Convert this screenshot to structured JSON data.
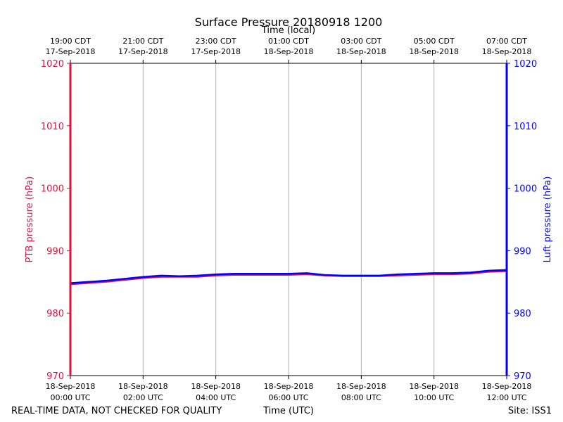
{
  "chart_data": {
    "type": "line",
    "title": "Surface Pressure 20180918 1200",
    "top_axis_label": "Time (local)",
    "xlabel": "Time (UTC)",
    "footer_left": "REAL-TIME DATA, NOT CHECKED FOR QUALITY",
    "footer_right": "Site: ISS1",
    "ylabel_left": "PTB pressure (hPa)",
    "ylabel_right": "Luft pressure (hPa)",
    "xlim_hours_utc": [
      0,
      12
    ],
    "ylim": [
      970,
      1020
    ],
    "yticks": [
      970,
      980,
      990,
      1000,
      1010,
      1020
    ],
    "xticks_bottom": [
      {
        "h": 0,
        "line1": "18-Sep-2018",
        "line2": "00:00 UTC"
      },
      {
        "h": 2,
        "line1": "18-Sep-2018",
        "line2": "02:00 UTC"
      },
      {
        "h": 4,
        "line1": "18-Sep-2018",
        "line2": "04:00 UTC"
      },
      {
        "h": 6,
        "line1": "18-Sep-2018",
        "line2": "06:00 UTC"
      },
      {
        "h": 8,
        "line1": "18-Sep-2018",
        "line2": "08:00 UTC"
      },
      {
        "h": 10,
        "line1": "18-Sep-2018",
        "line2": "10:00 UTC"
      },
      {
        "h": 12,
        "line1": "18-Sep-2018",
        "line2": "12:00 UTC"
      }
    ],
    "xticks_top": [
      {
        "h": 0,
        "line1": "19:00 CDT",
        "line2": "17-Sep-2018"
      },
      {
        "h": 2,
        "line1": "21:00 CDT",
        "line2": "17-Sep-2018"
      },
      {
        "h": 4,
        "line1": "23:00 CDT",
        "line2": "17-Sep-2018"
      },
      {
        "h": 6,
        "line1": "01:00 CDT",
        "line2": "18-Sep-2018"
      },
      {
        "h": 8,
        "line1": "03:00 CDT",
        "line2": "18-Sep-2018"
      },
      {
        "h": 10,
        "line1": "05:00 CDT",
        "line2": "18-Sep-2018"
      },
      {
        "h": 12,
        "line1": "07:00 CDT",
        "line2": "18-Sep-2018"
      }
    ],
    "grid": "vertical",
    "series": [
      {
        "color": "#dc143c",
        "x": [
          0,
          0.5,
          1,
          1.5,
          2,
          2.5,
          3,
          3.5,
          4,
          4.5,
          5,
          5.5,
          6,
          6.5,
          7,
          7.5,
          8,
          8.5,
          9,
          9.5,
          10,
          10.5,
          11,
          11.5,
          12
        ],
        "values": [
          984.6,
          984.8,
          985.0,
          985.3,
          985.6,
          985.8,
          985.8,
          985.8,
          986.0,
          986.1,
          986.1,
          986.1,
          986.1,
          986.2,
          986.0,
          985.9,
          985.9,
          985.9,
          986.0,
          986.1,
          986.2,
          986.2,
          986.3,
          986.6,
          986.7
        ]
      },
      {
        "color": "#0000ff",
        "x": [
          0,
          0.5,
          1,
          1.5,
          2,
          2.5,
          3,
          3.5,
          4,
          4.5,
          5,
          5.5,
          6,
          6.5,
          7,
          7.5,
          8,
          8.5,
          9,
          9.5,
          10,
          10.5,
          11,
          11.5,
          12
        ],
        "values": [
          984.8,
          985.0,
          985.2,
          985.5,
          985.8,
          986.0,
          985.9,
          986.0,
          986.2,
          986.3,
          986.3,
          986.3,
          986.3,
          986.4,
          986.1,
          986.0,
          986.0,
          986.0,
          986.2,
          986.3,
          986.4,
          986.4,
          986.5,
          986.8,
          986.9
        ]
      }
    ],
    "colors": {
      "left_axis": "#dc143c",
      "right_axis": "#0000ff",
      "grid": "#b0b0b0"
    }
  }
}
